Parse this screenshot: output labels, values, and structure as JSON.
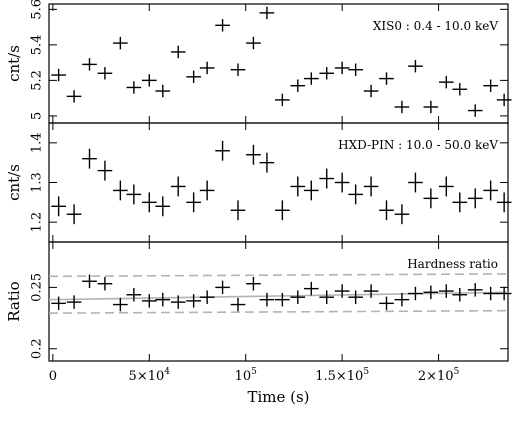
{
  "chart_data": {
    "type": "scatter",
    "x_axis": {
      "label": "Time (s)",
      "range": [
        -2000,
        236000
      ],
      "tick_values": [
        0,
        50000,
        100000,
        150000,
        200000
      ],
      "tick_labels": [
        {
          "mant": "0",
          "exp": ""
        },
        {
          "mant": "5×10",
          "exp": "4"
        },
        {
          "mant": "10",
          "exp": "5"
        },
        {
          "mant": "1.5×10",
          "exp": "5"
        },
        {
          "mant": "2×10",
          "exp": "5"
        }
      ]
    },
    "panels": [
      {
        "name": "xis0",
        "annotation": "XIS0 : 0.4 - 10.0 keV",
        "ylabel": "cnt/s",
        "ylim": [
          4.96,
          5.63
        ],
        "yticks": [
          5,
          5.2,
          5.4,
          5.6
        ],
        "yticklabels": [
          "5",
          "5.2",
          "5.4",
          "5.6"
        ],
        "x": [
          3000,
          11000,
          19000,
          27000,
          35000,
          42000,
          50000,
          57000,
          65000,
          73000,
          80000,
          88000,
          96000,
          104000,
          111000,
          119000,
          127000,
          134000,
          142000,
          150000,
          157000,
          165000,
          173000,
          181000,
          188000,
          196000,
          204000,
          211000,
          219000,
          227000,
          234000
        ],
        "y": [
          5.23,
          5.11,
          5.29,
          5.24,
          5.41,
          5.16,
          5.2,
          5.14,
          5.36,
          5.22,
          5.27,
          5.51,
          5.26,
          5.41,
          5.58,
          5.09,
          5.17,
          5.21,
          5.24,
          5.27,
          5.26,
          5.14,
          5.21,
          5.05,
          5.28,
          5.05,
          5.19,
          5.15,
          5.03,
          5.17,
          5.09
        ],
        "yerr": 0.035,
        "xerr": 3800
      },
      {
        "name": "hxd",
        "annotation": "HXD-PIN : 10.0 - 50.0 keV",
        "ylabel": "cnt/s",
        "ylim": [
          1.15,
          1.45
        ],
        "yticks": [
          1.2,
          1.3,
          1.4
        ],
        "yticklabels": [
          "1.2",
          "1.3",
          "1.4"
        ],
        "x": [
          3000,
          11000,
          19000,
          27000,
          35000,
          42000,
          50000,
          57000,
          65000,
          73000,
          80000,
          88000,
          96000,
          104000,
          111000,
          119000,
          127000,
          134000,
          142000,
          150000,
          157000,
          165000,
          173000,
          181000,
          188000,
          196000,
          204000,
          211000,
          219000,
          227000,
          234000
        ],
        "y": [
          1.24,
          1.22,
          1.36,
          1.33,
          1.28,
          1.27,
          1.25,
          1.24,
          1.29,
          1.25,
          1.28,
          1.38,
          1.23,
          1.37,
          1.35,
          1.23,
          1.29,
          1.28,
          1.31,
          1.3,
          1.27,
          1.29,
          1.23,
          1.22,
          1.3,
          1.26,
          1.29,
          1.25,
          1.26,
          1.28,
          1.25
        ],
        "yerr": 0.025,
        "xerr": 3800
      },
      {
        "name": "ratio",
        "annotation": "Hardness ratio",
        "ylabel": "Ratio",
        "ylim": [
          0.19,
          0.287
        ],
        "yticks": [
          0.2,
          0.25
        ],
        "yticklabels": [
          "0.2",
          "0.25"
        ],
        "x": [
          3000,
          11000,
          19000,
          27000,
          35000,
          42000,
          50000,
          57000,
          65000,
          73000,
          80000,
          88000,
          96000,
          104000,
          111000,
          119000,
          127000,
          134000,
          142000,
          150000,
          157000,
          165000,
          173000,
          181000,
          188000,
          196000,
          204000,
          211000,
          219000,
          227000,
          234000
        ],
        "y": [
          0.237,
          0.238,
          0.255,
          0.253,
          0.236,
          0.244,
          0.239,
          0.24,
          0.238,
          0.239,
          0.242,
          0.25,
          0.236,
          0.253,
          0.24,
          0.24,
          0.242,
          0.249,
          0.242,
          0.247,
          0.242,
          0.247,
          0.237,
          0.24,
          0.245,
          0.246,
          0.247,
          0.244,
          0.248,
          0.245,
          0.245
        ],
        "yerr": 0.0055,
        "xerr": 3800,
        "fit": {
          "style": "solid",
          "x": [
            -2000,
            236000
          ],
          "y": [
            0.24,
            0.246
          ]
        },
        "bounds": [
          {
            "style": "dashed",
            "x": [
              -2000,
              236000
            ],
            "y": [
              0.259,
              0.261
            ]
          },
          {
            "style": "dashed",
            "x": [
              -2000,
              236000
            ],
            "y": [
              0.229,
              0.231
            ]
          }
        ]
      }
    ]
  }
}
